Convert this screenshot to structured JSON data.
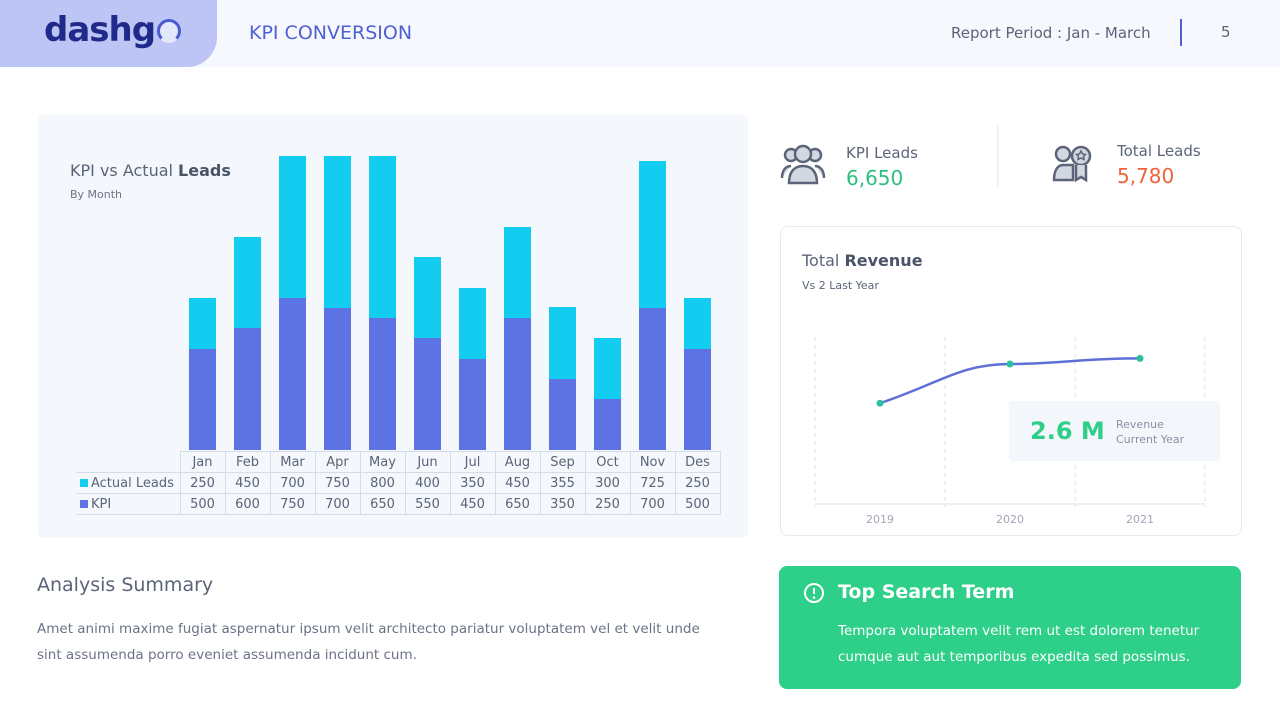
{
  "header": {
    "logo": "dashg",
    "title": "KPI CONVERSION",
    "period": "Report Period : Jan - March",
    "page": "5"
  },
  "chart_data": {
    "type": "bar",
    "stacked": true,
    "title_prefix": "KPI vs Actual ",
    "title_bold": "Leads",
    "subtitle": "By Month",
    "categories": [
      "Jan",
      "Feb",
      "Mar",
      "Apr",
      "May",
      "Jun",
      "Jul",
      "Aug",
      "Sep",
      "Oct",
      "Nov",
      "Des"
    ],
    "series": [
      {
        "name": "Actual Leads",
        "color": "#13cdf0",
        "values": [
          250,
          450,
          700,
          750,
          800,
          400,
          350,
          450,
          355,
          300,
          725,
          250
        ]
      },
      {
        "name": "KPI",
        "color": "#5e73e3",
        "values": [
          500,
          600,
          750,
          700,
          650,
          550,
          450,
          650,
          350,
          250,
          700,
          500
        ]
      }
    ]
  },
  "stats": [
    {
      "label": "KPI Leads",
      "value": "6,650",
      "color": "#2ebf7f",
      "icon": "users-icon"
    },
    {
      "label": "Total Leads",
      "value": "5,780",
      "color": "#f0623b",
      "icon": "users-award-icon"
    }
  ],
  "revenue": {
    "title_prefix": "Total ",
    "title_bold": "Revenue",
    "subtitle": "Vs 2 Last Year",
    "chart": {
      "type": "line",
      "x": [
        "2019",
        "2020",
        "2021"
      ],
      "y": [
        1.8,
        2.5,
        2.6
      ],
      "ylim": [
        0,
        3
      ]
    },
    "value": "2.6 M",
    "value_label1": "Revenue",
    "value_label2": "Current Year"
  },
  "summary": {
    "title": "Analysis Summary",
    "text": "Amet animi maxime fugiat aspernatur ipsum velit architecto pariatur voluptatem vel et  velit unde sint assumenda porro eveniet assumenda incidunt cum."
  },
  "search": {
    "title": "Top Search Term",
    "text": "Tempora voluptatem velit rem ut est dolorem tenetur cumque aut aut temporibus expedita sed possimus."
  }
}
